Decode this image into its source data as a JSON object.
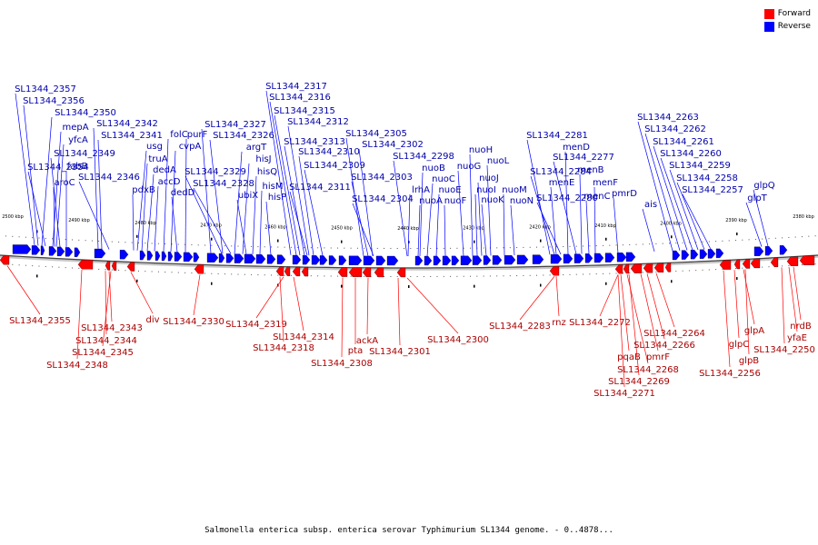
{
  "legend": {
    "forward_label": "Forward",
    "reverse_label": "Reverse",
    "forward_color": "#ff0000",
    "reverse_color": "#0000ff"
  },
  "caption": "Salmonella enterica subsp. enterica serovar Typhimurium SL1344 genome. - 0..4878...",
  "ticks": [
    "2500 kbp",
    "2490 kbp",
    "2480 kbp",
    "2470 kbp",
    "2460 kbp",
    "2450 kbp",
    "2440 kbp",
    "2430 kbp",
    "2420 kbp",
    "2410 kbp",
    "2400 kbp",
    "2390 kbp",
    "2380 kbp"
  ],
  "reverse_labels": [
    "SL1344_2357",
    "SL1344_2356",
    "SL1344_2350",
    "mepA",
    "yfcA",
    "SL1344_2349",
    "SL1344_2354",
    "fabB",
    "aroC",
    "SL1344_2342",
    "SL1344_2341",
    "SL1344_2346",
    "usg",
    "truA",
    "dedA",
    "pdxB",
    "accD",
    "folC",
    "cvpA",
    "dedD",
    "purF",
    "SL1344_2327",
    "SL1344_2326",
    "argT",
    "SL1344_2329",
    "hisJ",
    "hisQ",
    "SL1344_2328",
    "ubiX",
    "hisM",
    "hisP",
    "SL1344_2317",
    "SL1344_2316",
    "SL1344_2315",
    "SL1344_2312",
    "SL1344_2313",
    "SL1344_2310",
    "SL1344_2309",
    "SL1344_2311",
    "SL1344_2305",
    "SL1344_2302",
    "SL1344_2298",
    "nuoB",
    "SL1344_2303",
    "lrhA",
    "nuoC",
    "nuoA",
    "SL1344_2304",
    "nuoE",
    "nuoF",
    "nuoH",
    "nuoG",
    "nuoL",
    "nuoJ",
    "nuoI",
    "nuoM",
    "nuoK",
    "nuoN",
    "SL1344_2281",
    "menD",
    "SL1344_2277",
    "menB",
    "SL1344_2284",
    "menE",
    "SL1344_2280",
    "menF",
    "menC",
    "pmrD",
    "ais",
    "SL1344_2263",
    "SL1344_2262",
    "SL1344_2261",
    "SL1344_2260",
    "SL1344_2259",
    "SL1344_2258",
    "SL1344_2257",
    "glpQ",
    "glpT"
  ],
  "forward_labels": [
    "SL1344_2355",
    "SL1344_2343",
    "SL1344_2344",
    "SL1344_2345",
    "SL1344_2348",
    "div",
    "SL1344_2330",
    "SL1344_2319",
    "SL1344_2314",
    "SL1344_2318",
    "SL1344_2308",
    "pta",
    "ackA",
    "SL1344_2301",
    "SL1344_2300",
    "SL1344_2283",
    "rnz",
    "SL1344_2272",
    "pqaB",
    "SL1344_2268",
    "SL1344_2269",
    "SL1344_2271",
    "pmrF",
    "SL1344_2266",
    "SL1344_2264",
    "glpA",
    "glpC",
    "glpB",
    "SL1344_2256",
    "nrdB",
    "yfaE",
    "SL1344_2250"
  ]
}
